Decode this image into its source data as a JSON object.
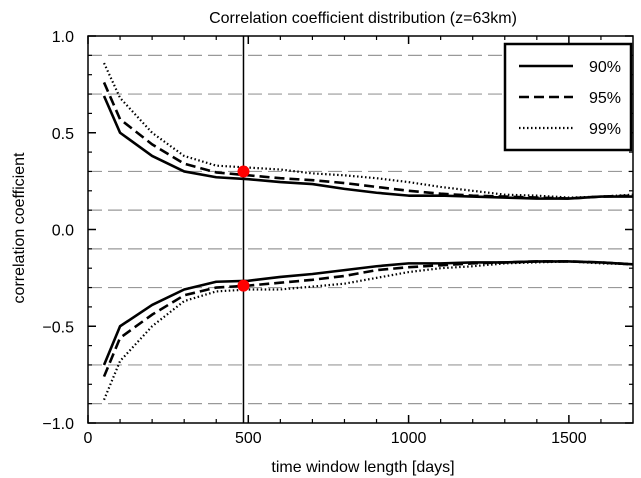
{
  "chart_data": {
    "type": "line",
    "title": "Correlation coefficient distribution (z=63km)",
    "xlabel": "time window length [days]",
    "ylabel": "correlation coefficient",
    "xlim": [
      0,
      1700
    ],
    "ylim": [
      -1.0,
      1.0
    ],
    "x_ticks": [
      0,
      500,
      1000,
      1500
    ],
    "y_ticks": [
      -1.0,
      -0.5,
      0.0,
      0.5,
      1.0
    ],
    "x_tick_labels": [
      "0",
      "500",
      "1000",
      "1500"
    ],
    "y_tick_labels": [
      "−1.0",
      "−0.5",
      "0.0",
      "0.5",
      "1.0"
    ],
    "reference_lines_y": [
      0.9,
      0.7,
      0.3,
      0.1,
      -0.1,
      -0.3,
      -0.7,
      -0.9
    ],
    "vertical_line_x": 485,
    "highlight_points": [
      {
        "x": 485,
        "y": 0.3
      },
      {
        "x": 485,
        "y": -0.29
      }
    ],
    "legend_position": "top-right",
    "x": [
      50,
      100,
      200,
      300,
      400,
      500,
      600,
      700,
      800,
      900,
      1000,
      1100,
      1200,
      1300,
      1400,
      1500,
      1600,
      1700
    ],
    "series": [
      {
        "name": "90%",
        "style": "solid",
        "upper": [
          0.69,
          0.5,
          0.38,
          0.3,
          0.27,
          0.26,
          0.245,
          0.235,
          0.21,
          0.19,
          0.175,
          0.175,
          0.17,
          0.165,
          0.16,
          0.16,
          0.17,
          0.17
        ],
        "lower": [
          -0.7,
          -0.5,
          -0.39,
          -0.31,
          -0.27,
          -0.265,
          -0.245,
          -0.23,
          -0.21,
          -0.19,
          -0.175,
          -0.175,
          -0.17,
          -0.17,
          -0.165,
          -0.165,
          -0.17,
          -0.18
        ]
      },
      {
        "name": "95%",
        "style": "dashed",
        "upper": [
          0.76,
          0.57,
          0.44,
          0.34,
          0.295,
          0.28,
          0.265,
          0.255,
          0.24,
          0.22,
          0.2,
          0.185,
          0.175,
          0.17,
          0.165,
          0.16,
          0.17,
          0.175
        ],
        "lower": [
          -0.76,
          -0.56,
          -0.44,
          -0.34,
          -0.3,
          -0.29,
          -0.275,
          -0.26,
          -0.24,
          -0.21,
          -0.195,
          -0.185,
          -0.175,
          -0.17,
          -0.165,
          -0.165,
          -0.17,
          -0.18
        ]
      },
      {
        "name": "99%",
        "style": "dotted",
        "upper": [
          0.86,
          0.68,
          0.5,
          0.38,
          0.33,
          0.32,
          0.31,
          0.29,
          0.28,
          0.265,
          0.245,
          0.22,
          0.2,
          0.18,
          0.175,
          0.165,
          0.17,
          0.18
        ],
        "lower": [
          -0.88,
          -0.68,
          -0.5,
          -0.37,
          -0.32,
          -0.31,
          -0.31,
          -0.295,
          -0.28,
          -0.25,
          -0.22,
          -0.2,
          -0.19,
          -0.175,
          -0.17,
          -0.165,
          -0.175,
          -0.18
        ]
      }
    ]
  }
}
